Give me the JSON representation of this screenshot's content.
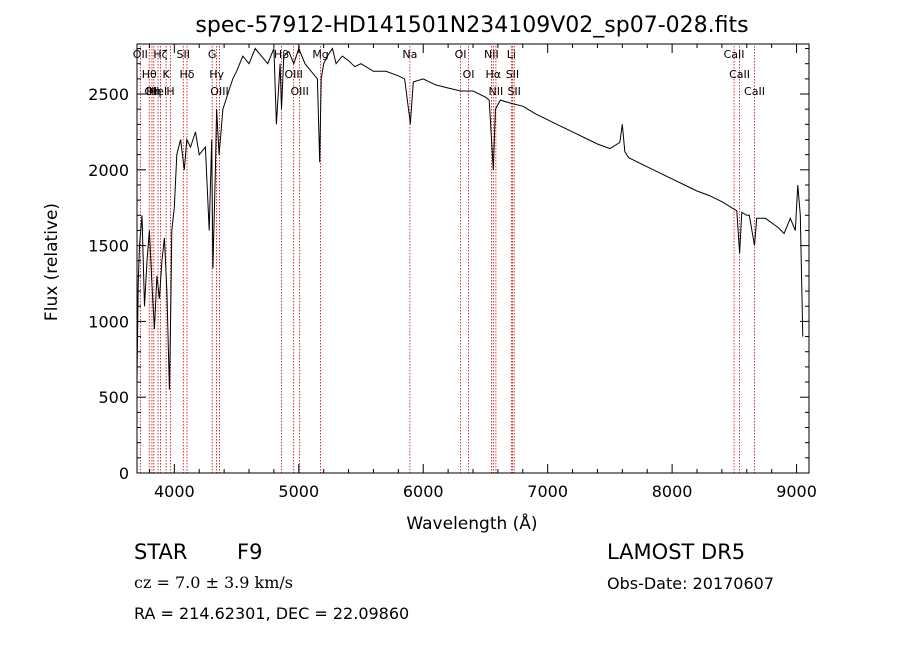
{
  "chart_data": {
    "type": "line",
    "title": "spec-57912-HD141501N234109V02_sp07-028.fits",
    "xlabel": "Wavelength (Å)",
    "ylabel": "Flux (relative)",
    "xlim": [
      3700,
      9100
    ],
    "ylim": [
      0,
      2830
    ],
    "xticks": [
      4000,
      5000,
      6000,
      7000,
      8000,
      9000
    ],
    "xtick_labels": [
      "4000",
      "5000",
      "6000",
      "7000",
      "8000",
      "9000"
    ],
    "yticks": [
      0,
      500,
      1000,
      1500,
      2000,
      2500
    ],
    "ytick_labels": [
      "0",
      "500",
      "1000",
      "1500",
      "2000",
      "2500"
    ],
    "grid": false,
    "series": [
      {
        "x": [
          3700,
          3710,
          3720,
          3740,
          3760,
          3780,
          3800,
          3820,
          3840,
          3860,
          3880,
          3900,
          3920,
          3940,
          3960,
          3970,
          3980,
          4000,
          4020,
          4050,
          4080,
          4100,
          4130,
          4170,
          4200,
          4250,
          4280,
          4300,
          4310,
          4330,
          4340,
          4360,
          4390,
          4430,
          4470,
          4500,
          4550,
          4600,
          4650,
          4700,
          4750,
          4800,
          4820,
          4850,
          4861,
          4880,
          4920,
          4960,
          5000,
          5050,
          5100,
          5150,
          5168,
          5180,
          5200,
          5230,
          5270,
          5300,
          5350,
          5400,
          5450,
          5500,
          5600,
          5700,
          5800,
          5850,
          5890,
          5896,
          5920,
          6000,
          6100,
          6200,
          6300,
          6400,
          6500,
          6530,
          6563,
          6580,
          6620,
          6700,
          6800,
          6900,
          7000,
          7100,
          7200,
          7300,
          7400,
          7500,
          7580,
          7600,
          7620,
          7650,
          7700,
          7800,
          7900,
          8000,
          8100,
          8200,
          8300,
          8400,
          8498,
          8520,
          8542,
          8560,
          8600,
          8620,
          8662,
          8680,
          8750,
          8800,
          8850,
          8900,
          8950,
          8990,
          9010,
          9030,
          9050
        ],
        "y": [
          600,
          1250,
          1500,
          1700,
          1100,
          1400,
          1600,
          1250,
          950,
          1300,
          1150,
          1400,
          1550,
          1200,
          550,
          1000,
          1600,
          1750,
          2100,
          2200,
          2000,
          2200,
          2150,
          2250,
          2100,
          2150,
          1600,
          2200,
          1350,
          2000,
          2400,
          2100,
          2400,
          2500,
          2600,
          2650,
          2750,
          2700,
          2800,
          2750,
          2700,
          2800,
          2300,
          2700,
          2400,
          2750,
          2780,
          2700,
          2800,
          2700,
          2650,
          2600,
          2050,
          2600,
          2700,
          2750,
          2800,
          2700,
          2750,
          2720,
          2680,
          2700,
          2650,
          2650,
          2620,
          2600,
          2350,
          2300,
          2580,
          2600,
          2560,
          2540,
          2520,
          2520,
          2480,
          2460,
          2000,
          2400,
          2460,
          2440,
          2420,
          2370,
          2330,
          2290,
          2250,
          2210,
          2170,
          2140,
          2180,
          2300,
          2120,
          2080,
          2060,
          2020,
          1980,
          1940,
          1900,
          1860,
          1830,
          1790,
          1740,
          1730,
          1450,
          1720,
          1700,
          1700,
          1500,
          1680,
          1680,
          1650,
          1620,
          1580,
          1680,
          1600,
          1900,
          1700,
          900
        ]
      }
    ],
    "line_markers": [
      {
        "wavelength": 3727,
        "labels": [
          "OII"
        ]
      },
      {
        "wavelength": 3798,
        "labels": [
          "Hθ"
        ]
      },
      {
        "wavelength": 3820,
        "labels": [
          "OII"
        ]
      },
      {
        "wavelength": 3835,
        "labels": [
          "Hη"
        ]
      },
      {
        "wavelength": 3869,
        "labels": [
          "HeI"
        ]
      },
      {
        "wavelength": 3889,
        "labels": [
          "Hζ"
        ]
      },
      {
        "wavelength": 3934,
        "labels": [
          "K"
        ]
      },
      {
        "wavelength": 3969,
        "labels": [
          "H"
        ]
      },
      {
        "wavelength": 4072,
        "labels": [
          "SII"
        ]
      },
      {
        "wavelength": 4102,
        "labels": [
          "Hδ"
        ]
      },
      {
        "wavelength": 4304,
        "labels": [
          "G"
        ]
      },
      {
        "wavelength": 4340,
        "labels": [
          "Hγ"
        ]
      },
      {
        "wavelength": 4363,
        "labels": [
          "OIII"
        ]
      },
      {
        "wavelength": 4861,
        "labels": [
          "Hβ"
        ]
      },
      {
        "wavelength": 4959,
        "labels": [
          "OIII"
        ]
      },
      {
        "wavelength": 5007,
        "labels": [
          "OIII"
        ]
      },
      {
        "wavelength": 5175,
        "labels": [
          "Mg"
        ]
      },
      {
        "wavelength": 5893,
        "labels": [
          "Na"
        ]
      },
      {
        "wavelength": 6300,
        "labels": [
          "OI"
        ]
      },
      {
        "wavelength": 6364,
        "labels": [
          "OI"
        ]
      },
      {
        "wavelength": 6548,
        "labels": [
          "NII"
        ]
      },
      {
        "wavelength": 6563,
        "labels": [
          "Hα"
        ]
      },
      {
        "wavelength": 6584,
        "labels": [
          "NII"
        ]
      },
      {
        "wavelength": 6708,
        "labels": [
          "Li"
        ]
      },
      {
        "wavelength": 6717,
        "labels": [
          "SII"
        ]
      },
      {
        "wavelength": 6731,
        "labels": [
          "SII"
        ]
      },
      {
        "wavelength": 8498,
        "labels": [
          "CaII"
        ]
      },
      {
        "wavelength": 8542,
        "labels": [
          "CaII"
        ]
      },
      {
        "wavelength": 8662,
        "labels": [
          "CaII"
        ]
      }
    ],
    "marker_color": "#cc0000"
  },
  "info": {
    "object_class": "STAR",
    "subclass": "F9",
    "survey": "LAMOST DR5",
    "cz": "cz = 7.0 ± 3.9 km/s",
    "obs_date": "Obs-Date: 20170607",
    "coords": "RA = 214.62301, DEC =  22.09860"
  }
}
